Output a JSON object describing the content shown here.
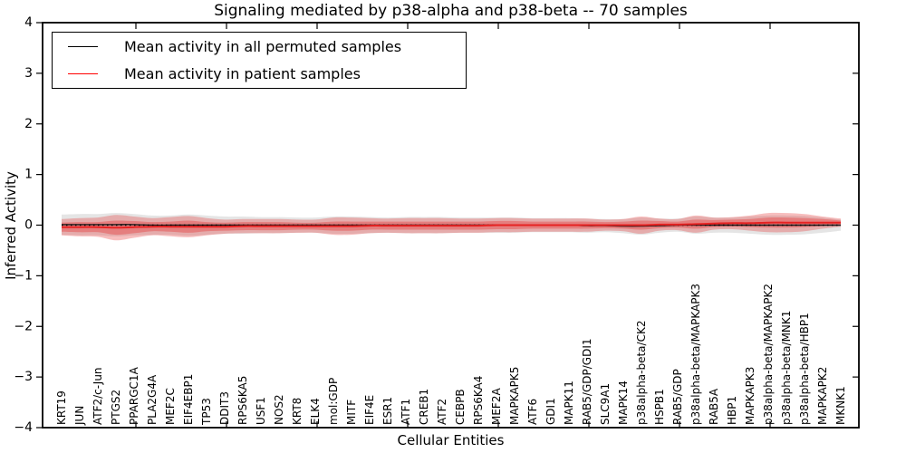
{
  "chart_data": {
    "type": "area",
    "title": "Signaling mediated by p38-alpha and p38-beta -- 70 samples",
    "xlabel": "Cellular Entities",
    "ylabel": "Inferred Activity",
    "ylim": [
      -4,
      4
    ],
    "yticks": [
      4,
      3,
      2,
      1,
      0,
      -1,
      -2,
      -3,
      -4
    ],
    "ytick_labels": [
      "4",
      "3",
      "2",
      "1",
      "0",
      "−1",
      "−2",
      "−3",
      "−4"
    ],
    "grid": false,
    "legend_position": "upper left",
    "legend": [
      {
        "label": "Mean activity in all permuted samples",
        "color": "#000000"
      },
      {
        "label": "Mean activity in patient samples",
        "color": "#ff0000"
      }
    ],
    "categories": [
      "KRT19",
      "JUN",
      "ATF2/c-Jun",
      "PTGS2",
      "PPARGC1A",
      "PLA2G4A",
      "MEF2C",
      "EIF4EBP1",
      "TP53",
      "DDIT3",
      "RPS6KA5",
      "USF1",
      "NOS2",
      "KRT8",
      "ELK4",
      "mol:GDP",
      "MITF",
      "EIF4E",
      "ESR1",
      "ATF1",
      "CREB1",
      "ATF2",
      "CEBPB",
      "RPS6KA4",
      "MEF2A",
      "MAPKAPK5",
      "ATF6",
      "GDI1",
      "MAPK11",
      "RAB5/GDP/GDI1",
      "SLC9A1",
      "MAPK14",
      "p38alpha-beta/CK2",
      "HSPB1",
      "RAB5/GDP",
      "p38alpha-beta/MAPKAPK3",
      "RAB5A",
      "HBP1",
      "MAPKAPK3",
      "p38alpha-beta/MAPKAPK2",
      "p38alpha-beta/MNK1",
      "p38alpha-beta/HBP1",
      "MAPKAPK2",
      "MKNK1"
    ],
    "series": [
      {
        "name": "permuted_mean",
        "label": "Mean activity in all permuted samples",
        "kind": "line",
        "color": "#1a1a1a",
        "values": [
          0.01,
          0.01,
          0.01,
          0.01,
          0.01,
          0,
          0,
          0,
          0,
          0,
          0,
          0,
          0,
          0,
          0,
          0,
          0,
          0,
          0,
          0,
          0,
          0,
          0,
          0,
          0,
          0,
          0,
          0,
          0,
          -0.01,
          -0.01,
          -0.02,
          -0.02,
          -0.01,
          0,
          0,
          0,
          0,
          0,
          0,
          0,
          0,
          0,
          0
        ]
      },
      {
        "name": "patient_mean",
        "label": "Mean activity in patient samples",
        "kind": "line",
        "color": "#e62222",
        "values": [
          -0.04,
          -0.04,
          -0.04,
          -0.05,
          -0.04,
          -0.03,
          -0.03,
          -0.03,
          -0.03,
          -0.03,
          -0.02,
          -0.02,
          -0.02,
          -0.02,
          -0.02,
          -0.02,
          -0.02,
          -0.01,
          -0.01,
          -0.01,
          -0.01,
          -0.01,
          -0.01,
          -0.01,
          0,
          0,
          0,
          0,
          0,
          0,
          0,
          0,
          0,
          0.01,
          0.01,
          0.02,
          0.03,
          0.04,
          0.04,
          0.05,
          0.05,
          0.05,
          0.05,
          0.05
        ]
      },
      {
        "name": "permuted_band_halfwidth",
        "kind": "band",
        "center": "permuted_mean",
        "color": "rgba(110,110,110,0.18)",
        "values": [
          0.2,
          0.21,
          0.21,
          0.23,
          0.21,
          0.19,
          0.19,
          0.21,
          0.19,
          0.17,
          0.17,
          0.16,
          0.16,
          0.15,
          0.15,
          0.17,
          0.17,
          0.16,
          0.15,
          0.16,
          0.16,
          0.16,
          0.15,
          0.15,
          0.15,
          0.15,
          0.14,
          0.14,
          0.14,
          0.14,
          0.13,
          0.14,
          0.17,
          0.14,
          0.13,
          0.17,
          0.15,
          0.15,
          0.17,
          0.19,
          0.19,
          0.18,
          0.15,
          0.11
        ]
      },
      {
        "name": "patient_band_outer_halfwidth",
        "kind": "band",
        "center": "patient_mean",
        "color": "rgba(230,40,40,0.30)",
        "values": [
          0.16,
          0.18,
          0.19,
          0.25,
          0.21,
          0.17,
          0.19,
          0.21,
          0.17,
          0.14,
          0.14,
          0.14,
          0.14,
          0.13,
          0.13,
          0.17,
          0.17,
          0.15,
          0.14,
          0.15,
          0.15,
          0.15,
          0.14,
          0.14,
          0.14,
          0.14,
          0.13,
          0.13,
          0.13,
          0.13,
          0.11,
          0.12,
          0.17,
          0.12,
          0.11,
          0.17,
          0.12,
          0.12,
          0.15,
          0.19,
          0.19,
          0.17,
          0.12,
          0.08
        ]
      },
      {
        "name": "patient_band_inner_halfwidth",
        "kind": "band",
        "center": "patient_mean",
        "color": "rgba(230,40,40,0.35)",
        "values": [
          0.09,
          0.1,
          0.1,
          0.14,
          0.12,
          0.09,
          0.1,
          0.12,
          0.09,
          0.08,
          0.08,
          0.08,
          0.08,
          0.07,
          0.07,
          0.09,
          0.09,
          0.08,
          0.08,
          0.08,
          0.08,
          0.08,
          0.08,
          0.08,
          0.08,
          0.08,
          0.07,
          0.07,
          0.07,
          0.07,
          0.06,
          0.07,
          0.09,
          0.07,
          0.06,
          0.09,
          0.07,
          0.07,
          0.08,
          0.1,
          0.1,
          0.09,
          0.07,
          0.04
        ]
      }
    ],
    "zero_line": {
      "y": 0,
      "style": "dotted",
      "color": "#000000"
    }
  }
}
